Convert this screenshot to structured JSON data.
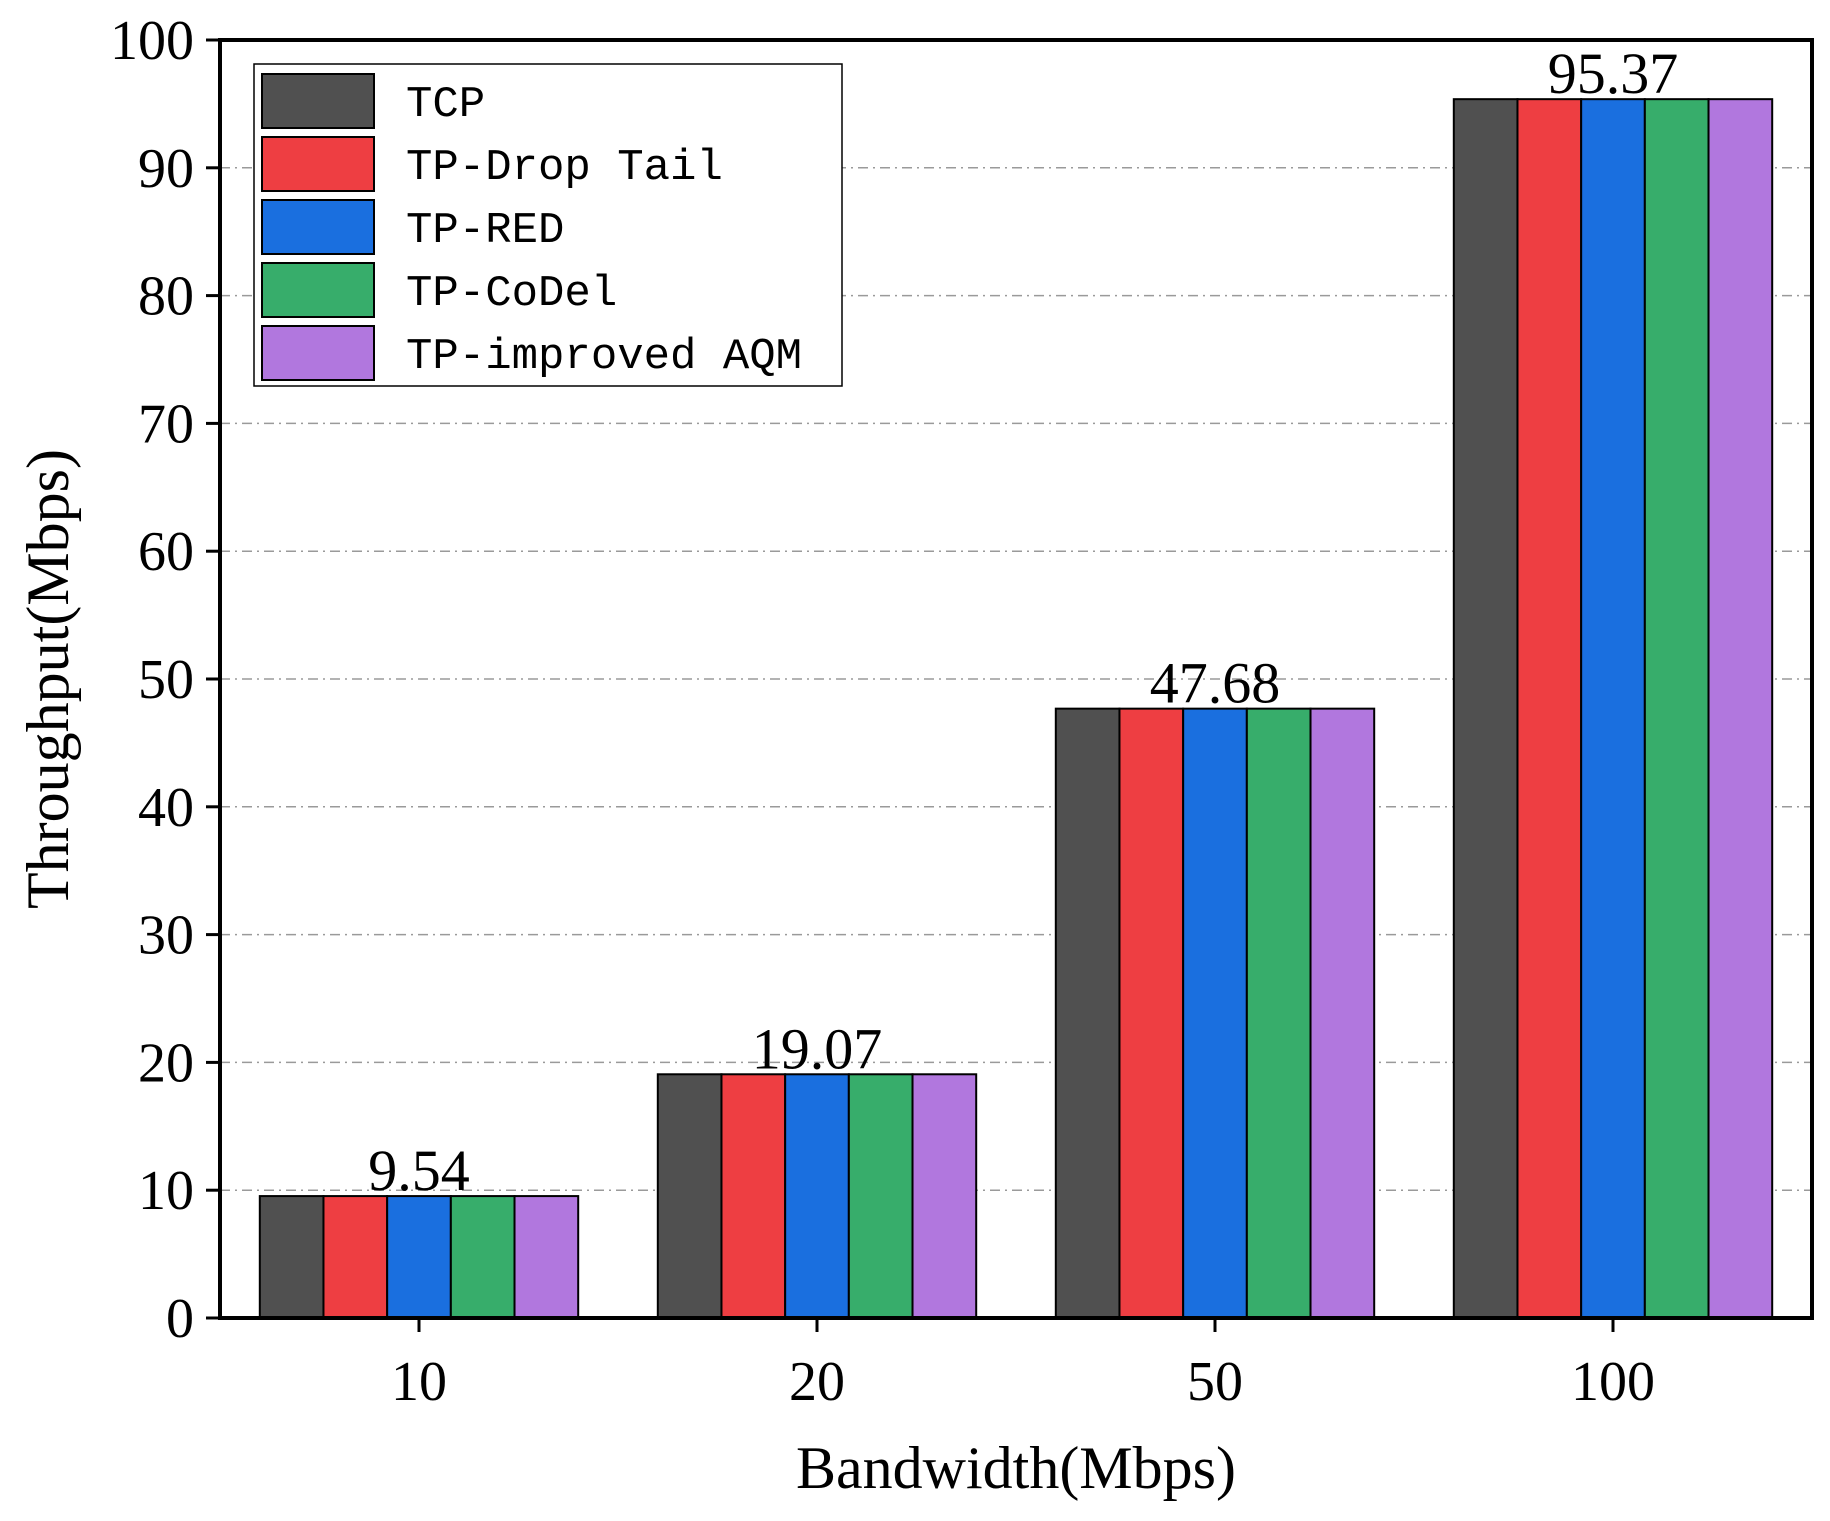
{
  "chart_data": {
    "type": "bar",
    "categories": [
      "10",
      "20",
      "50",
      "100"
    ],
    "series": [
      {
        "name": "TCP",
        "color": "#505050",
        "values": [
          9.54,
          19.07,
          47.68,
          95.37
        ]
      },
      {
        "name": "TP-Drop Tail",
        "color": "#EE3E42",
        "values": [
          9.54,
          19.07,
          47.68,
          95.37
        ]
      },
      {
        "name": "TP-RED",
        "color": "#1A6FDF",
        "values": [
          9.54,
          19.07,
          47.68,
          95.37
        ]
      },
      {
        "name": "TP-CoDel",
        "color": "#37AD6B",
        "values": [
          9.54,
          19.07,
          47.68,
          95.37
        ]
      },
      {
        "name": "TP-improved AQM",
        "color": "#B177DE",
        "values": [
          9.54,
          19.07,
          47.68,
          95.37
        ]
      }
    ],
    "data_labels": [
      "9.54",
      "19.07",
      "47.68",
      "95.37"
    ],
    "xlabel": "Bandwidth(Mbps)",
    "ylabel": "Throughput(Mbps)",
    "ylim": [
      0,
      100
    ],
    "yticks": [
      "0",
      "10",
      "20",
      "30",
      "40",
      "50",
      "60",
      "70",
      "80",
      "90",
      "100"
    ],
    "grid": "horizontal dashed",
    "legend_position": "top-left"
  }
}
